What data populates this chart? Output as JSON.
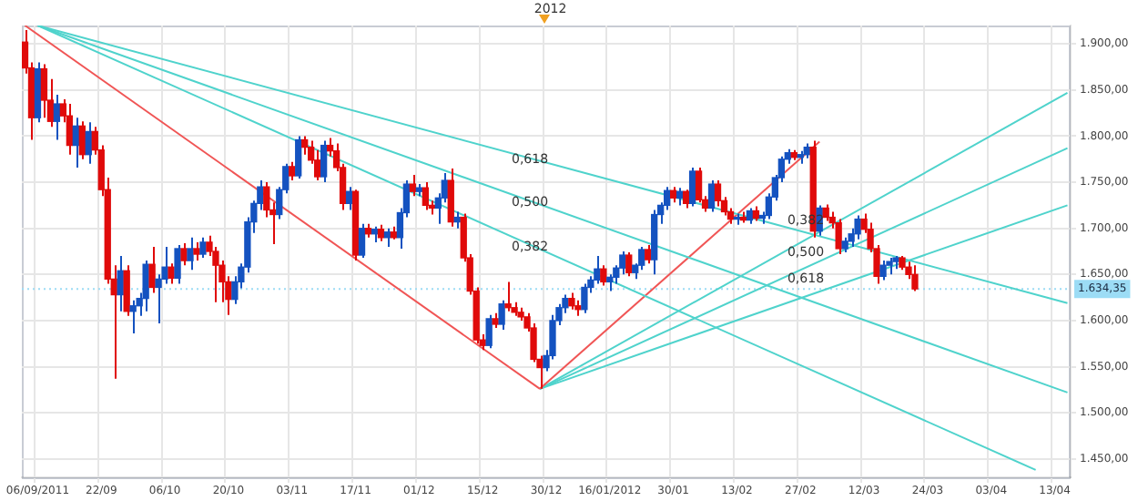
{
  "chart_data": {
    "type": "candlestick",
    "categories": [
      null,
      null,
      "06/09/2011",
      null,
      null,
      null,
      null,
      null,
      null,
      null,
      null,
      null,
      "22/09",
      null,
      null,
      null,
      null,
      null,
      null,
      null,
      null,
      null,
      "06/10",
      null,
      null,
      null,
      null,
      null,
      null,
      null,
      null,
      null,
      "20/10",
      null,
      null,
      null,
      null,
      null,
      null,
      null,
      null,
      null,
      "03/11",
      null,
      null,
      null,
      null,
      null,
      null,
      null,
      null,
      null,
      "17/11",
      null,
      null,
      null,
      null,
      null,
      null,
      null,
      null,
      null,
      "01/12",
      null,
      null,
      null,
      null,
      null,
      null,
      null,
      null,
      null,
      "15/12",
      null,
      null,
      null,
      null,
      null,
      null,
      null,
      null,
      null,
      "30/12",
      null,
      null,
      null,
      null,
      null,
      null,
      null,
      null,
      null,
      "16/01/2012",
      null,
      null,
      null,
      null,
      null,
      null,
      null,
      null,
      null,
      "30/01",
      null,
      null,
      null,
      null,
      null,
      null,
      null,
      null,
      null,
      "13/02",
      null,
      null,
      null,
      null,
      null,
      null,
      null,
      null,
      null,
      "27/02",
      null,
      null,
      null,
      null,
      null,
      null,
      null,
      null,
      null,
      "12/03",
      null,
      null,
      null,
      null,
      null,
      null,
      null,
      null,
      null,
      "24/03",
      null,
      null,
      null,
      null,
      null,
      null,
      null,
      null,
      null,
      "03/04",
      null,
      null,
      null,
      null,
      null,
      null,
      null,
      null,
      null,
      "13/04",
      null,
      null
    ],
    "ohlc": [
      [
        1902,
        1915,
        1868,
        1874
      ],
      [
        1874,
        1880,
        1796,
        1820
      ],
      [
        1820,
        1880,
        1815,
        1873
      ],
      [
        1873,
        1878,
        1820,
        1839
      ],
      [
        1839,
        1862,
        1810,
        1816
      ],
      [
        1816,
        1845,
        1796,
        1835
      ],
      [
        1835,
        1840,
        1815,
        1822
      ],
      [
        1822,
        1835,
        1780,
        1790
      ],
      [
        1790,
        1820,
        1766,
        1811
      ],
      [
        1811,
        1816,
        1775,
        1780
      ],
      [
        1780,
        1815,
        1770,
        1805
      ],
      [
        1805,
        1810,
        1780,
        1785
      ],
      [
        1785,
        1790,
        1735,
        1742
      ],
      [
        1742,
        1755,
        1640,
        1645
      ],
      [
        1645,
        1660,
        1537,
        1628
      ],
      [
        1628,
        1670,
        1610,
        1654
      ],
      [
        1654,
        1660,
        1605,
        1610
      ],
      [
        1610,
        1622,
        1586,
        1616
      ],
      [
        1616,
        1630,
        1605,
        1624
      ],
      [
        1624,
        1665,
        1610,
        1661
      ],
      [
        1661,
        1680,
        1630,
        1636
      ],
      [
        1636,
        1650,
        1597,
        1645
      ],
      [
        1645,
        1680,
        1640,
        1658
      ],
      [
        1658,
        1662,
        1640,
        1646
      ],
      [
        1646,
        1682,
        1640,
        1678
      ],
      [
        1678,
        1684,
        1660,
        1665
      ],
      [
        1665,
        1690,
        1655,
        1678
      ],
      [
        1678,
        1685,
        1665,
        1672
      ],
      [
        1672,
        1690,
        1668,
        1685
      ],
      [
        1685,
        1692,
        1670,
        1675
      ],
      [
        1675,
        1680,
        1620,
        1660
      ],
      [
        1660,
        1665,
        1620,
        1642
      ],
      [
        1642,
        1648,
        1606,
        1623
      ],
      [
        1623,
        1648,
        1618,
        1642
      ],
      [
        1642,
        1662,
        1635,
        1658
      ],
      [
        1658,
        1712,
        1652,
        1707
      ],
      [
        1707,
        1730,
        1695,
        1727
      ],
      [
        1727,
        1752,
        1720,
        1745
      ],
      [
        1745,
        1750,
        1712,
        1720
      ],
      [
        1720,
        1728,
        1683,
        1715
      ],
      [
        1715,
        1745,
        1710,
        1742
      ],
      [
        1742,
        1770,
        1738,
        1767
      ],
      [
        1767,
        1772,
        1752,
        1757
      ],
      [
        1757,
        1800,
        1754,
        1796
      ],
      [
        1796,
        1800,
        1780,
        1788
      ],
      [
        1788,
        1795,
        1770,
        1774
      ],
      [
        1774,
        1785,
        1752,
        1756
      ],
      [
        1756,
        1795,
        1750,
        1790
      ],
      [
        1790,
        1798,
        1778,
        1784
      ],
      [
        1784,
        1792,
        1762,
        1766
      ],
      [
        1766,
        1770,
        1720,
        1727
      ],
      [
        1727,
        1745,
        1720,
        1740
      ],
      [
        1740,
        1742,
        1665,
        1671
      ],
      [
        1671,
        1705,
        1668,
        1700
      ],
      [
        1700,
        1705,
        1690,
        1694
      ],
      [
        1694,
        1702,
        1685,
        1699
      ],
      [
        1699,
        1704,
        1686,
        1690
      ],
      [
        1690,
        1700,
        1680,
        1696
      ],
      [
        1696,
        1702,
        1688,
        1690
      ],
      [
        1690,
        1722,
        1678,
        1717
      ],
      [
        1717,
        1752,
        1712,
        1748
      ],
      [
        1748,
        1758,
        1735,
        1740
      ],
      [
        1740,
        1748,
        1735,
        1744
      ],
      [
        1744,
        1750,
        1720,
        1725
      ],
      [
        1725,
        1730,
        1715,
        1722
      ],
      [
        1722,
        1738,
        1705,
        1733
      ],
      [
        1733,
        1760,
        1728,
        1752
      ],
      [
        1752,
        1765,
        1702,
        1707
      ],
      [
        1707,
        1718,
        1700,
        1712
      ],
      [
        1712,
        1716,
        1664,
        1668
      ],
      [
        1668,
        1672,
        1628,
        1632
      ],
      [
        1632,
        1636,
        1575,
        1579
      ],
      [
        1579,
        1585,
        1568,
        1573
      ],
      [
        1573,
        1606,
        1570,
        1602
      ],
      [
        1602,
        1608,
        1592,
        1596
      ],
      [
        1596,
        1622,
        1590,
        1618
      ],
      [
        1618,
        1642,
        1610,
        1614
      ],
      [
        1614,
        1620,
        1605,
        1609
      ],
      [
        1609,
        1614,
        1600,
        1604
      ],
      [
        1604,
        1608,
        1588,
        1592
      ],
      [
        1592,
        1597,
        1555,
        1558
      ],
      [
        1558,
        1562,
        1526,
        1549
      ],
      [
        1549,
        1568,
        1545,
        1562
      ],
      [
        1562,
        1606,
        1558,
        1600
      ],
      [
        1600,
        1618,
        1595,
        1614
      ],
      [
        1614,
        1628,
        1608,
        1624
      ],
      [
        1624,
        1630,
        1612,
        1616
      ],
      [
        1616,
        1622,
        1605,
        1612
      ],
      [
        1612,
        1640,
        1608,
        1636
      ],
      [
        1636,
        1648,
        1630,
        1644
      ],
      [
        1644,
        1670,
        1640,
        1656
      ],
      [
        1656,
        1660,
        1638,
        1642
      ],
      [
        1642,
        1650,
        1632,
        1647
      ],
      [
        1647,
        1660,
        1640,
        1657
      ],
      [
        1657,
        1675,
        1650,
        1671
      ],
      [
        1671,
        1674,
        1648,
        1652
      ],
      [
        1652,
        1662,
        1645,
        1660
      ],
      [
        1660,
        1680,
        1655,
        1677
      ],
      [
        1677,
        1682,
        1662,
        1666
      ],
      [
        1666,
        1720,
        1650,
        1715
      ],
      [
        1715,
        1728,
        1705,
        1725
      ],
      [
        1725,
        1745,
        1720,
        1741
      ],
      [
        1741,
        1745,
        1728,
        1733
      ],
      [
        1733,
        1744,
        1725,
        1740
      ],
      [
        1740,
        1742,
        1722,
        1727
      ],
      [
        1727,
        1766,
        1724,
        1762
      ],
      [
        1762,
        1766,
        1728,
        1731
      ],
      [
        1731,
        1735,
        1718,
        1722
      ],
      [
        1722,
        1752,
        1718,
        1748
      ],
      [
        1748,
        1752,
        1724,
        1730
      ],
      [
        1730,
        1734,
        1714,
        1718
      ],
      [
        1718,
        1722,
        1705,
        1710
      ],
      [
        1710,
        1716,
        1704,
        1712
      ],
      [
        1712,
        1718,
        1706,
        1709
      ],
      [
        1709,
        1722,
        1705,
        1719
      ],
      [
        1719,
        1724,
        1708,
        1711
      ],
      [
        1711,
        1718,
        1705,
        1714
      ],
      [
        1714,
        1738,
        1710,
        1734
      ],
      [
        1734,
        1758,
        1730,
        1755
      ],
      [
        1755,
        1778,
        1750,
        1775
      ],
      [
        1775,
        1786,
        1770,
        1782
      ],
      [
        1782,
        1785,
        1774,
        1777
      ],
      [
        1777,
        1784,
        1770,
        1780
      ],
      [
        1780,
        1792,
        1776,
        1788
      ],
      [
        1788,
        1795,
        1690,
        1697
      ],
      [
        1697,
        1725,
        1692,
        1722
      ],
      [
        1722,
        1726,
        1708,
        1712
      ],
      [
        1712,
        1718,
        1700,
        1706
      ],
      [
        1706,
        1710,
        1672,
        1678
      ],
      [
        1678,
        1690,
        1674,
        1686
      ],
      [
        1686,
        1700,
        1680,
        1694
      ],
      [
        1694,
        1714,
        1688,
        1710
      ],
      [
        1710,
        1716,
        1695,
        1699
      ],
      [
        1699,
        1706,
        1674,
        1678
      ],
      [
        1678,
        1682,
        1640,
        1648
      ],
      [
        1648,
        1665,
        1644,
        1660
      ],
      [
        1660,
        1668,
        1650,
        1664
      ],
      [
        1664,
        1670,
        1656,
        1668
      ],
      [
        1668,
        1670,
        1655,
        1658
      ],
      [
        1658,
        1664,
        1645,
        1650
      ],
      [
        1650,
        1660,
        1632,
        1634.35
      ],
      null,
      null,
      null,
      null,
      null,
      null,
      null,
      null,
      null,
      null,
      null,
      null,
      null,
      null,
      null,
      null,
      null,
      null,
      null,
      null,
      null,
      null,
      null,
      null
    ],
    "colors": [
      "#e00a0a",
      "#e00a0a",
      "#1452c0",
      "#e00a0a",
      "#e00a0a",
      "#1452c0",
      "#e00a0a",
      "#e00a0a",
      "#1452c0",
      "#e00a0a",
      "#1452c0",
      "#e00a0a",
      "#e00a0a",
      "#e00a0a",
      "#e00a0a",
      "#1452c0",
      "#e00a0a",
      "#1452c0",
      "#1452c0",
      "#1452c0",
      "#e00a0a",
      "#1452c0",
      "#1452c0",
      "#e00a0a",
      "#1452c0",
      "#e00a0a",
      "#1452c0",
      "#e00a0a",
      "#1452c0",
      "#e00a0a",
      "#e00a0a",
      "#e00a0a",
      "#e00a0a",
      "#1452c0",
      "#1452c0",
      "#1452c0",
      "#1452c0",
      "#1452c0",
      "#e00a0a",
      "#e00a0a",
      "#1452c0",
      "#1452c0",
      "#e00a0a",
      "#1452c0",
      "#e00a0a",
      "#e00a0a",
      "#e00a0a",
      "#1452c0",
      "#e00a0a",
      "#e00a0a",
      "#e00a0a",
      "#1452c0",
      "#e00a0a",
      "#1452c0",
      "#e00a0a",
      "#1452c0",
      "#e00a0a",
      "#1452c0",
      "#e00a0a",
      "#1452c0",
      "#1452c0",
      "#e00a0a",
      "#1452c0",
      "#e00a0a",
      "#e00a0a",
      "#1452c0",
      "#1452c0",
      "#e00a0a",
      "#1452c0",
      "#e00a0a",
      "#e00a0a",
      "#e00a0a",
      "#e00a0a",
      "#1452c0",
      "#e00a0a",
      "#1452c0",
      "#e00a0a",
      "#e00a0a",
      "#e00a0a",
      "#e00a0a",
      "#e00a0a",
      "#e00a0a",
      "#1452c0",
      "#1452c0",
      "#1452c0",
      "#1452c0",
      "#e00a0a",
      "#e00a0a",
      "#1452c0",
      "#1452c0",
      "#1452c0",
      "#e00a0a",
      "#1452c0",
      "#1452c0",
      "#1452c0",
      "#e00a0a",
      "#1452c0",
      "#1452c0",
      "#e00a0a",
      "#1452c0",
      "#1452c0",
      "#1452c0",
      "#e00a0a",
      "#1452c0",
      "#e00a0a",
      "#1452c0",
      "#e00a0a",
      "#e00a0a",
      "#1452c0",
      "#e00a0a",
      "#e00a0a",
      "#e00a0a",
      "#1452c0",
      "#e00a0a",
      "#1452c0",
      "#e00a0a",
      "#1452c0",
      "#1452c0",
      "#1452c0",
      "#1452c0",
      "#1452c0",
      "#e00a0a",
      "#1452c0",
      "#1452c0",
      "#e00a0a",
      "#1452c0",
      "#e00a0a",
      "#e00a0a",
      "#e00a0a",
      "#1452c0",
      "#1452c0",
      "#1452c0",
      "#e00a0a",
      "#e00a0a",
      "#e00a0a",
      "#1452c0",
      "#1452c0",
      "#1452c0",
      "#e00a0a",
      "#e00a0a",
      "#e00a0a",
      null,
      null,
      null,
      null,
      null,
      null,
      null,
      null,
      null,
      null,
      null,
      null,
      null,
      null,
      null,
      null,
      null,
      null,
      null,
      null,
      null,
      null,
      null,
      null
    ],
    "series": [
      {
        "type": "line",
        "color": "#f05555",
        "values": [
          1920,
          null,
          null,
          null,
          null,
          null,
          null,
          null,
          null,
          null,
          null,
          null,
          null,
          null,
          null,
          null,
          null,
          null,
          null,
          null,
          null,
          null,
          null,
          null,
          null,
          null,
          null,
          null,
          null,
          null,
          null,
          null,
          null,
          null,
          null,
          null,
          null,
          null,
          null,
          null,
          null,
          null,
          null,
          null,
          null,
          null,
          null,
          null,
          null,
          null,
          null,
          null,
          null,
          null,
          null,
          null,
          null,
          null,
          null,
          null,
          null,
          null,
          null,
          null,
          null,
          null,
          null,
          null,
          null,
          null,
          null,
          null,
          null,
          null,
          null,
          null,
          null,
          null,
          null,
          null,
          null,
          1526,
          null,
          null,
          null,
          null,
          null,
          null,
          null,
          null,
          null,
          null,
          null,
          null,
          null,
          null,
          null,
          null,
          null,
          null,
          null,
          null,
          null,
          null,
          null,
          null,
          null,
          null,
          null,
          null,
          null,
          null,
          null,
          null,
          null,
          null,
          null,
          null,
          null,
          null,
          null,
          null,
          null,
          null,
          null,
          null,
          null,
          null,
          null,
          null,
          null,
          null,
          null,
          null,
          null,
          null,
          null,
          null,
          null,
          null,
          null,
          null,
          null,
          null,
          null,
          null,
          null,
          null,
          null,
          null,
          null,
          null,
          null,
          null,
          null,
          null,
          null,
          null,
          null,
          null,
          null,
          null,
          null,
          null,
          null
        ]
      },
      {
        "type": "line",
        "color": "#4fd3cc",
        "values": [
          null,
          null,
          1920,
          null,
          null,
          null,
          null,
          null,
          null,
          null,
          null,
          null,
          null,
          null,
          null,
          null,
          null,
          null,
          null,
          null,
          null,
          null,
          null,
          null,
          null,
          null,
          null,
          null,
          null,
          null,
          null,
          null,
          null,
          null,
          null,
          null,
          null,
          null,
          null,
          null,
          null,
          null,
          null,
          null,
          null,
          null,
          null,
          null,
          null,
          null,
          null,
          null,
          null,
          null,
          null,
          null,
          null,
          null,
          null,
          null,
          null,
          null,
          null,
          null,
          null,
          null,
          null,
          null,
          null,
          null,
          null,
          null,
          null,
          null,
          null,
          null,
          null,
          null,
          null,
          null,
          null,
          null,
          null,
          null,
          null,
          null,
          null,
          null,
          null,
          null,
          null,
          null,
          null,
          null,
          null,
          null,
          null,
          null,
          null,
          null,
          null,
          null,
          null,
          null,
          null,
          null,
          null,
          null,
          null,
          null,
          null,
          null,
          null,
          null,
          null,
          null,
          null,
          null,
          null,
          null,
          null,
          null,
          null,
          null,
          null,
          null,
          null,
          null,
          null,
          null,
          null,
          null,
          null,
          null,
          null,
          null,
          null,
          null,
          null,
          null,
          null,
          null,
          null,
          null,
          null,
          null,
          null,
          null,
          null,
          null,
          null,
          null,
          null,
          null,
          null,
          null,
          null,
          null,
          null,
          null,
          null,
          null,
          null,
          null,
          1619
        ]
      },
      {
        "type": "line",
        "color": "#4fd3cc",
        "values": [
          null,
          null,
          1920,
          null,
          null,
          null,
          null,
          null,
          null,
          null,
          null,
          null,
          null,
          null,
          null,
          null,
          null,
          null,
          null,
          null,
          null,
          null,
          null,
          null,
          null,
          null,
          null,
          null,
          null,
          null,
          null,
          null,
          null,
          null,
          null,
          null,
          null,
          null,
          null,
          null,
          null,
          null,
          null,
          null,
          null,
          null,
          null,
          null,
          null,
          null,
          null,
          null,
          null,
          null,
          null,
          null,
          null,
          null,
          null,
          null,
          null,
          null,
          null,
          null,
          null,
          null,
          null,
          null,
          null,
          null,
          null,
          null,
          null,
          null,
          null,
          null,
          null,
          null,
          null,
          null,
          null,
          null,
          null,
          null,
          null,
          null,
          null,
          null,
          null,
          null,
          null,
          null,
          null,
          null,
          null,
          null,
          null,
          null,
          null,
          null,
          null,
          null,
          null,
          null,
          null,
          null,
          null,
          null,
          null,
          null,
          null,
          null,
          null,
          null,
          null,
          null,
          null,
          null,
          null,
          null,
          null,
          null,
          null,
          null,
          null,
          null,
          null,
          null,
          null,
          null,
          null,
          null,
          null,
          null,
          null,
          null,
          null,
          null,
          null,
          null,
          null,
          null,
          null,
          null,
          null,
          null,
          null,
          null,
          null,
          null,
          null,
          null,
          null,
          null,
          null,
          null,
          null,
          null,
          null,
          null,
          null,
          null,
          null,
          null,
          1522
        ]
      },
      {
        "type": "line",
        "color": "#4fd3cc",
        "values": [
          null,
          null,
          1920,
          null,
          null,
          null,
          null,
          null,
          null,
          null,
          null,
          null,
          null,
          null,
          null,
          null,
          null,
          null,
          null,
          null,
          null,
          null,
          null,
          null,
          null,
          null,
          null,
          null,
          null,
          null,
          null,
          null,
          null,
          null,
          null,
          null,
          null,
          null,
          null,
          null,
          null,
          null,
          null,
          null,
          null,
          null,
          null,
          null,
          null,
          null,
          null,
          null,
          null,
          null,
          null,
          null,
          null,
          null,
          null,
          null,
          null,
          null,
          null,
          null,
          null,
          null,
          null,
          null,
          null,
          null,
          null,
          null,
          null,
          null,
          null,
          null,
          null,
          null,
          null,
          null,
          null,
          null,
          null,
          null,
          null,
          null,
          null,
          null,
          null,
          null,
          null,
          null,
          null,
          null,
          null,
          null,
          null,
          null,
          null,
          null,
          null,
          null,
          null,
          null,
          null,
          null,
          null,
          null,
          null,
          null,
          null,
          null,
          null,
          null,
          null,
          null,
          null,
          null,
          null,
          null,
          null,
          null,
          null,
          null,
          null,
          null,
          null,
          null,
          null,
          null,
          null,
          null,
          null,
          null,
          null,
          null,
          null,
          null,
          null,
          null,
          null,
          null,
          null,
          null,
          null,
          null,
          null,
          null,
          null,
          null,
          null,
          null,
          null,
          null,
          null,
          null,
          null,
          null,
          null,
          1438,
          null,
          null,
          null,
          null,
          null
        ]
      },
      {
        "type": "line",
        "color": "#f05555",
        "values": [
          null,
          null,
          null,
          null,
          null,
          null,
          null,
          null,
          null,
          null,
          null,
          null,
          null,
          null,
          null,
          null,
          null,
          null,
          null,
          null,
          null,
          null,
          null,
          null,
          null,
          null,
          null,
          null,
          null,
          null,
          null,
          null,
          null,
          null,
          null,
          null,
          null,
          null,
          null,
          null,
          null,
          null,
          null,
          null,
          null,
          null,
          null,
          null,
          null,
          null,
          null,
          null,
          null,
          null,
          null,
          null,
          null,
          null,
          null,
          null,
          null,
          null,
          null,
          null,
          null,
          null,
          null,
          null,
          null,
          null,
          null,
          null,
          null,
          null,
          null,
          null,
          null,
          null,
          null,
          null,
          null,
          1526,
          null,
          null,
          null,
          null,
          null,
          null,
          null,
          null,
          null,
          null,
          null,
          null,
          null,
          null,
          null,
          null,
          null,
          null,
          null,
          null,
          null,
          null,
          null,
          null,
          null,
          null,
          null,
          null,
          null,
          null,
          null,
          null,
          null,
          null,
          null,
          null,
          null,
          null,
          null,
          null,
          null,
          null,
          null,
          1794,
          null,
          null,
          null,
          null,
          null,
          null,
          null,
          null,
          null,
          null,
          null,
          null,
          null,
          null,
          null,
          null,
          null,
          null,
          null,
          null,
          null,
          null,
          null,
          null,
          null,
          null,
          null,
          null,
          null,
          null,
          null,
          null,
          null,
          null,
          null,
          null,
          null,
          null,
          null
        ]
      },
      {
        "type": "line",
        "color": "#4fd3cc",
        "values": [
          null,
          null,
          null,
          null,
          null,
          null,
          null,
          null,
          null,
          null,
          null,
          null,
          null,
          null,
          null,
          null,
          null,
          null,
          null,
          null,
          null,
          null,
          null,
          null,
          null,
          null,
          null,
          null,
          null,
          null,
          null,
          null,
          null,
          null,
          null,
          null,
          null,
          null,
          null,
          null,
          null,
          null,
          null,
          null,
          null,
          null,
          null,
          null,
          null,
          null,
          null,
          null,
          null,
          null,
          null,
          null,
          null,
          null,
          null,
          null,
          null,
          null,
          null,
          null,
          null,
          null,
          null,
          null,
          null,
          null,
          null,
          null,
          null,
          null,
          null,
          null,
          null,
          null,
          null,
          null,
          null,
          1526,
          null,
          null,
          null,
          null,
          null,
          null,
          null,
          null,
          null,
          null,
          null,
          null,
          null,
          null,
          null,
          null,
          null,
          null,
          null,
          null,
          null,
          null,
          null,
          null,
          null,
          null,
          null,
          null,
          null,
          null,
          null,
          null,
          null,
          null,
          null,
          null,
          null,
          null,
          null,
          null,
          null,
          null,
          null,
          null,
          null,
          null,
          null,
          null,
          null,
          null,
          null,
          null,
          null,
          null,
          null,
          null,
          null,
          null,
          null,
          null,
          null,
          null,
          null,
          null,
          null,
          null,
          null,
          null,
          null,
          null,
          null,
          null,
          null,
          null,
          null,
          null,
          null,
          null,
          null,
          null,
          null,
          null,
          1847
        ]
      },
      {
        "type": "line",
        "color": "#4fd3cc",
        "values": [
          null,
          null,
          null,
          null,
          null,
          null,
          null,
          null,
          null,
          null,
          null,
          null,
          null,
          null,
          null,
          null,
          null,
          null,
          null,
          null,
          null,
          null,
          null,
          null,
          null,
          null,
          null,
          null,
          null,
          null,
          null,
          null,
          null,
          null,
          null,
          null,
          null,
          null,
          null,
          null,
          null,
          null,
          null,
          null,
          null,
          null,
          null,
          null,
          null,
          null,
          null,
          null,
          null,
          null,
          null,
          null,
          null,
          null,
          null,
          null,
          null,
          null,
          null,
          null,
          null,
          null,
          null,
          null,
          null,
          null,
          null,
          null,
          null,
          null,
          null,
          null,
          null,
          null,
          null,
          null,
          null,
          1526,
          null,
          null,
          null,
          null,
          null,
          null,
          null,
          null,
          null,
          null,
          null,
          null,
          null,
          null,
          null,
          null,
          null,
          null,
          null,
          null,
          null,
          null,
          null,
          null,
          null,
          null,
          null,
          null,
          null,
          null,
          null,
          null,
          null,
          null,
          null,
          null,
          null,
          null,
          null,
          null,
          null,
          null,
          null,
          null,
          null,
          null,
          null,
          null,
          null,
          null,
          null,
          null,
          null,
          null,
          null,
          null,
          null,
          null,
          null,
          null,
          null,
          null,
          null,
          null,
          null,
          null,
          null,
          null,
          null,
          null,
          null,
          null,
          null,
          null,
          null,
          null,
          null,
          null,
          null,
          null,
          null,
          null,
          1787
        ]
      },
      {
        "type": "line",
        "color": "#4fd3cc",
        "values": [
          null,
          null,
          null,
          null,
          null,
          null,
          null,
          null,
          null,
          null,
          null,
          null,
          null,
          null,
          null,
          null,
          null,
          null,
          null,
          null,
          null,
          null,
          null,
          null,
          null,
          null,
          null,
          null,
          null,
          null,
          null,
          null,
          null,
          null,
          null,
          null,
          null,
          null,
          null,
          null,
          null,
          null,
          null,
          null,
          null,
          null,
          null,
          null,
          null,
          null,
          null,
          null,
          null,
          null,
          null,
          null,
          null,
          null,
          null,
          null,
          null,
          null,
          null,
          null,
          null,
          null,
          null,
          null,
          null,
          null,
          null,
          null,
          null,
          null,
          null,
          null,
          null,
          null,
          null,
          null,
          null,
          1526,
          null,
          null,
          null,
          null,
          null,
          null,
          null,
          null,
          null,
          null,
          null,
          null,
          null,
          null,
          null,
          null,
          null,
          null,
          null,
          null,
          null,
          null,
          null,
          null,
          null,
          null,
          null,
          null,
          null,
          null,
          null,
          null,
          null,
          null,
          null,
          null,
          null,
          null,
          null,
          null,
          null,
          null,
          null,
          null,
          null,
          null,
          null,
          null,
          null,
          null,
          null,
          null,
          null,
          null,
          null,
          null,
          null,
          null,
          null,
          null,
          null,
          null,
          null,
          null,
          null,
          null,
          null,
          null,
          null,
          null,
          null,
          null,
          null,
          null,
          null,
          null,
          null,
          null,
          null,
          null,
          null,
          null,
          1725
        ]
      }
    ],
    "ylim": [
      1430,
      1920
    ],
    "yticks": [
      {
        "value": 1450,
        "label": "1.450,00"
      },
      {
        "value": 1500,
        "label": "1.500,00"
      },
      {
        "value": 1550,
        "label": "1.550,00"
      },
      {
        "value": 1600,
        "label": "1.600,00"
      },
      {
        "value": 1650,
        "label": "1.650,00"
      },
      {
        "value": 1700,
        "label": "1.700,00"
      },
      {
        "value": 1750,
        "label": "1.750,00"
      },
      {
        "value": 1800,
        "label": "1.800,00"
      },
      {
        "value": 1850,
        "label": "1.850,00"
      },
      {
        "value": 1900,
        "label": "1.900,00"
      }
    ],
    "grid": true,
    "ref_lines": [
      {
        "axis": "y",
        "value": 1634.35,
        "label": "1.634,35",
        "color": "#9cdcf5",
        "line_style": "dotted"
      }
    ],
    "annotations": [
      {
        "text": "0,618",
        "y": 1766
      },
      {
        "text": "0,500",
        "y": 1719
      },
      {
        "text": "0,382",
        "y": 1671
      },
      {
        "text": "0,382",
        "y": 1699
      },
      {
        "text": "0,500",
        "y": 1665
      },
      {
        "text": "0,618",
        "y": 1636
      },
      "2012"
    ]
  }
}
